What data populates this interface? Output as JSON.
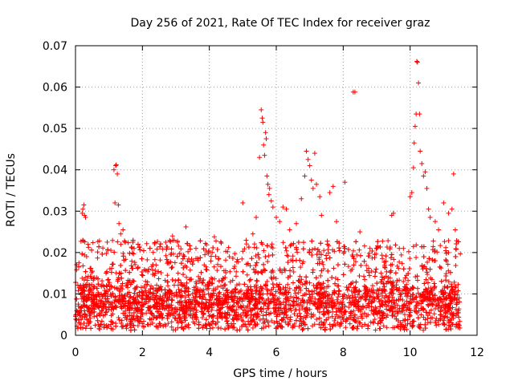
{
  "chart_data": {
    "type": "scatter",
    "title": "Day 256 of 2021, Rate Of TEC Index for receiver graz",
    "xlabel": "GPS time / hours",
    "ylabel": "ROTI / TECUs",
    "xlim": [
      0,
      12
    ],
    "ylim": [
      0,
      0.07
    ],
    "x_ticks": [
      0,
      2,
      4,
      6,
      8,
      10,
      12
    ],
    "x_tick_labels": [
      "0",
      "2",
      "4",
      "6",
      "8",
      "10",
      "12"
    ],
    "y_ticks": [
      0,
      0.01,
      0.02,
      0.03,
      0.04,
      0.05,
      0.06,
      0.07
    ],
    "y_tick_labels": [
      "0",
      "0.01",
      "0.02",
      "0.03",
      "0.04",
      "0.05",
      "0.06",
      "0.07"
    ],
    "grid": true,
    "marker": "plus",
    "color": "#ff0000",
    "time_range_hours": [
      0,
      11.5
    ],
    "baseline_band": {
      "median": 0.008,
      "typical_min": 0.003,
      "typical_max": 0.015
    },
    "series": [
      {
        "name": "ROTI",
        "points": [
          [
            0.2,
            0.0295
          ],
          [
            0.22,
            0.0305
          ],
          [
            0.25,
            0.0315
          ],
          [
            0.27,
            0.029
          ],
          [
            0.3,
            0.0285
          ],
          [
            1.15,
            0.04
          ],
          [
            1.2,
            0.041
          ],
          [
            1.22,
            0.0412
          ],
          [
            1.25,
            0.039
          ],
          [
            1.18,
            0.032
          ],
          [
            1.28,
            0.0315
          ],
          [
            1.3,
            0.027
          ],
          [
            1.35,
            0.0245
          ],
          [
            1.42,
            0.0255
          ],
          [
            2.9,
            0.024
          ],
          [
            2.95,
            0.023
          ],
          [
            3.05,
            0.0225
          ],
          [
            3.3,
            0.0262
          ],
          [
            3.6,
            0.021
          ],
          [
            4.15,
            0.0238
          ],
          [
            4.2,
            0.0228
          ],
          [
            4.6,
            0.019
          ],
          [
            5.0,
            0.032
          ],
          [
            5.3,
            0.0245
          ],
          [
            5.4,
            0.0285
          ],
          [
            5.5,
            0.043
          ],
          [
            5.55,
            0.0545
          ],
          [
            5.58,
            0.0525
          ],
          [
            5.6,
            0.0515
          ],
          [
            5.62,
            0.046
          ],
          [
            5.65,
            0.0435
          ],
          [
            5.68,
            0.049
          ],
          [
            5.7,
            0.0475
          ],
          [
            5.72,
            0.0385
          ],
          [
            5.75,
            0.0365
          ],
          [
            5.78,
            0.034
          ],
          [
            5.8,
            0.0355
          ],
          [
            5.85,
            0.0325
          ],
          [
            5.9,
            0.031
          ],
          [
            6.0,
            0.0285
          ],
          [
            6.1,
            0.0275
          ],
          [
            6.2,
            0.031
          ],
          [
            6.3,
            0.0305
          ],
          [
            6.4,
            0.0255
          ],
          [
            6.6,
            0.027
          ],
          [
            6.75,
            0.033
          ],
          [
            6.85,
            0.0385
          ],
          [
            6.9,
            0.0445
          ],
          [
            6.95,
            0.0425
          ],
          [
            7.0,
            0.041
          ],
          [
            7.05,
            0.0375
          ],
          [
            7.1,
            0.0355
          ],
          [
            7.15,
            0.044
          ],
          [
            7.2,
            0.0365
          ],
          [
            7.3,
            0.0335
          ],
          [
            7.35,
            0.029
          ],
          [
            7.6,
            0.0345
          ],
          [
            7.7,
            0.036
          ],
          [
            7.8,
            0.0275
          ],
          [
            8.05,
            0.037
          ],
          [
            8.3,
            0.0588
          ],
          [
            8.35,
            0.0588
          ],
          [
            8.5,
            0.025
          ],
          [
            8.8,
            0.021
          ],
          [
            9.45,
            0.029
          ],
          [
            9.5,
            0.0295
          ],
          [
            9.8,
            0.021
          ],
          [
            10.0,
            0.0335
          ],
          [
            10.05,
            0.0345
          ],
          [
            10.1,
            0.0405
          ],
          [
            10.12,
            0.0465
          ],
          [
            10.15,
            0.0505
          ],
          [
            10.18,
            0.0535
          ],
          [
            10.2,
            0.0662
          ],
          [
            10.22,
            0.066
          ],
          [
            10.25,
            0.061
          ],
          [
            10.28,
            0.0535
          ],
          [
            10.3,
            0.0445
          ],
          [
            10.35,
            0.0415
          ],
          [
            10.4,
            0.0385
          ],
          [
            10.45,
            0.0395
          ],
          [
            10.5,
            0.0355
          ],
          [
            10.55,
            0.0305
          ],
          [
            10.6,
            0.0285
          ],
          [
            10.75,
            0.0275
          ],
          [
            10.85,
            0.0255
          ],
          [
            11.0,
            0.032
          ],
          [
            11.15,
            0.0295
          ],
          [
            11.25,
            0.0305
          ],
          [
            11.3,
            0.039
          ],
          [
            11.35,
            0.0255
          ]
        ]
      }
    ]
  }
}
